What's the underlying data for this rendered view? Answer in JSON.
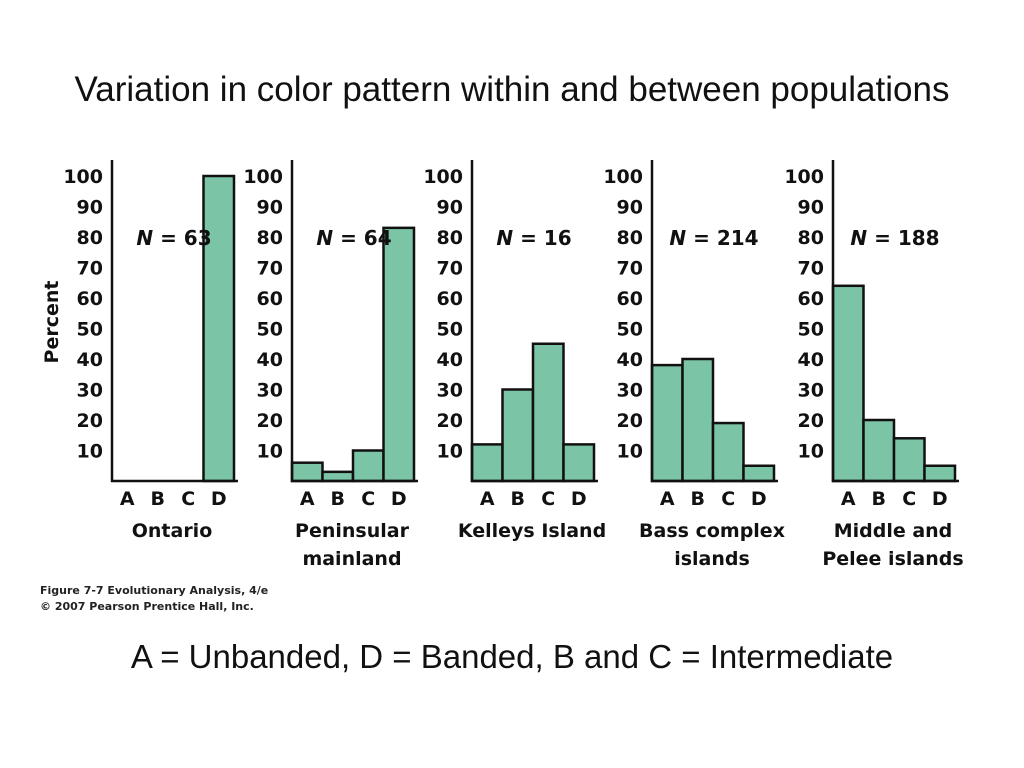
{
  "slide": {
    "title": "Variation in color pattern within and between populations",
    "legend_note": "A = Unbanded, D = Banded, B and C = Intermediate"
  },
  "caption": {
    "line1": "Figure 7-7  Evolutionary Analysis, 4/e",
    "line2": "© 2007 Pearson Prentice Hall, Inc."
  },
  "colors": {
    "bar_fill": "#7cc4a6",
    "bar_stroke": "#111111",
    "axis": "#111111"
  },
  "chart_data": [
    {
      "type": "bar",
      "title": "Ontario",
      "ylabel": "Percent",
      "n_label": "63",
      "categories": [
        "A",
        "B",
        "C",
        "D"
      ],
      "values": [
        0,
        0,
        0,
        100
      ],
      "yticks": [
        10,
        20,
        30,
        40,
        50,
        60,
        70,
        80,
        90,
        100
      ],
      "ylim": [
        0,
        105
      ]
    },
    {
      "type": "bar",
      "title": "Peninsular mainland",
      "ylabel": "",
      "n_label": "64",
      "categories": [
        "A",
        "B",
        "C",
        "D"
      ],
      "values": [
        6,
        3,
        10,
        83
      ],
      "yticks": [
        10,
        20,
        30,
        40,
        50,
        60,
        70,
        80,
        90,
        100
      ],
      "ylim": [
        0,
        105
      ]
    },
    {
      "type": "bar",
      "title": "Kelleys Island",
      "ylabel": "",
      "n_label": "16",
      "categories": [
        "A",
        "B",
        "C",
        "D"
      ],
      "values": [
        12,
        30,
        45,
        12
      ],
      "yticks": [
        10,
        20,
        30,
        40,
        50,
        60,
        70,
        80,
        90,
        100
      ],
      "ylim": [
        0,
        105
      ]
    },
    {
      "type": "bar",
      "title": "Bass complex islands",
      "ylabel": "",
      "n_label": "214",
      "categories": [
        "A",
        "B",
        "C",
        "D"
      ],
      "values": [
        38,
        40,
        19,
        5
      ],
      "yticks": [
        10,
        20,
        30,
        40,
        50,
        60,
        70,
        80,
        90,
        100
      ],
      "ylim": [
        0,
        105
      ]
    },
    {
      "type": "bar",
      "title": "Middle and Pelee islands",
      "ylabel": "",
      "n_label": "188",
      "categories": [
        "A",
        "B",
        "C",
        "D"
      ],
      "values": [
        64,
        20,
        14,
        5
      ],
      "yticks": [
        10,
        20,
        30,
        40,
        50,
        60,
        70,
        80,
        90,
        100
      ],
      "ylim": [
        0,
        105
      ]
    }
  ]
}
